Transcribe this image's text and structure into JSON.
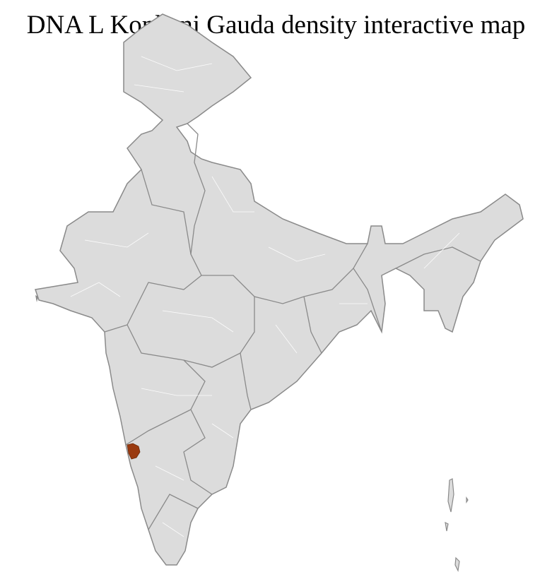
{
  "title": "DNA L Konkani Gauda density interactive map",
  "colors": {
    "land": "#dcdcdc",
    "state_border": "#8a8a8a",
    "district_border": "#ffffff",
    "highlight": "#9a3a10"
  },
  "highlighted_region": "Goa"
}
